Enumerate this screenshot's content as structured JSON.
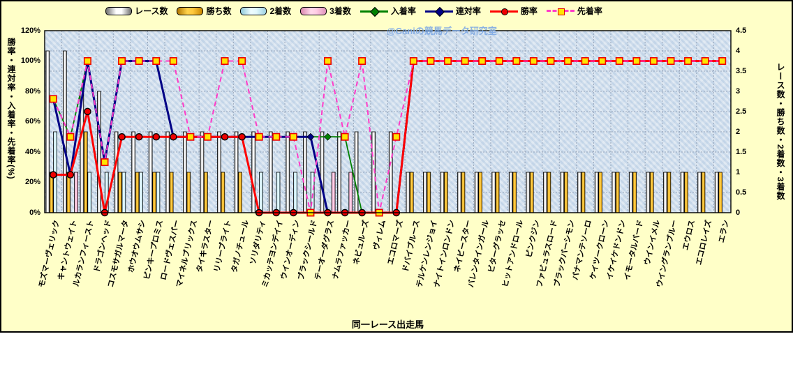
{
  "watermark": "@Caniの競馬データ研究室",
  "chart_data": {
    "type": "combo-bar-line",
    "xlabel": "同一レース出走馬",
    "grid": "on",
    "legend_position": "top",
    "y_left": {
      "title": "勝率・連対率・入着率・先着率(%)",
      "min": 0,
      "max": 120,
      "ticks": [
        "120%",
        "100%",
        "80%",
        "60%",
        "40%",
        "20%",
        "0%"
      ]
    },
    "y_right": {
      "title": "レース数・勝ち数・2着数・3着数",
      "min": 0,
      "max": 4.5,
      "ticks": [
        "4.5",
        "4",
        "3.5",
        "3",
        "2.5",
        "2",
        "1.5",
        "1",
        "0.5",
        "0"
      ]
    },
    "categories": [
      "モズマーヴェリック",
      "キャントウェイト",
      "ルカランフィースト",
      "ドラゴンヘッド",
      "コスモサガルマータ",
      "ホウオウムサシ",
      "ピンキープロミス",
      "ロードヴェスパー",
      "マイネルブリックス",
      "タイキラスター",
      "リリーブライト",
      "タガノチュール",
      "ソリダリティ",
      "ミカッテヨンデイイ",
      "ウインオーディン",
      "ブラックシールド",
      "テーオーダグラス",
      "ナムラファッカー",
      "ネビュルーズ",
      "ヴィレム",
      "エコロマーズ",
      "ドバイブルース",
      "テルケンレンジョイ",
      "ナイトインロンドン",
      "ネイビースター",
      "バレンタインガール",
      "ビターグラッセ",
      "ヒットアンドロール",
      "ピンクジン",
      "ファビュラスロード",
      "ブラックパーシモン",
      "パナマンテソーロ",
      "ケイツークローン",
      "イケイケドンドン",
      "イモータルバード",
      "ウインイメル",
      "ウイングランブルー",
      "エウロス",
      "エコロレイズ",
      "エラン"
    ],
    "series": [
      {
        "name": "レース数",
        "type": "bar",
        "axis": "right",
        "color": "#ffffff",
        "values": [
          4,
          4,
          3,
          3,
          2,
          2,
          2,
          2,
          2,
          2,
          2,
          2,
          2,
          2,
          2,
          2,
          2,
          2,
          2,
          2,
          2,
          1,
          1,
          1,
          1,
          1,
          1,
          1,
          1,
          1,
          1,
          1,
          1,
          1,
          1,
          1,
          1,
          1,
          1,
          1
        ]
      },
      {
        "name": "勝ち数",
        "type": "bar",
        "axis": "right",
        "color": "#ffb400",
        "values": [
          1,
          1,
          2,
          0,
          1,
          1,
          1,
          1,
          1,
          1,
          1,
          1,
          0,
          0,
          0,
          0,
          0,
          0,
          0,
          0,
          0,
          1,
          1,
          1,
          1,
          1,
          1,
          1,
          1,
          1,
          1,
          1,
          1,
          1,
          1,
          1,
          1,
          1,
          1,
          1
        ]
      },
      {
        "name": "2着数",
        "type": "bar",
        "axis": "right",
        "color": "#d2f2fa",
        "values": [
          2,
          0,
          1,
          1,
          1,
          1,
          1,
          0,
          0,
          0,
          0,
          0,
          1,
          1,
          1,
          1,
          0,
          0,
          0,
          0,
          0,
          0,
          0,
          0,
          0,
          0,
          0,
          0,
          0,
          0,
          0,
          0,
          0,
          0,
          0,
          0,
          0,
          0,
          0,
          0
        ]
      },
      {
        "name": "3着数",
        "type": "bar",
        "axis": "right",
        "color": "#f5aed2",
        "values": [
          0,
          1,
          0,
          0,
          0,
          0,
          0,
          0,
          0,
          0,
          0,
          0,
          0,
          0,
          0,
          0,
          1,
          1,
          0,
          0,
          0,
          0,
          0,
          0,
          0,
          0,
          0,
          0,
          0,
          0,
          0,
          0,
          0,
          0,
          0,
          0,
          0,
          0,
          0,
          0
        ]
      },
      {
        "name": "入着率",
        "type": "line",
        "axis": "left",
        "color": "#008000",
        "marker": "diamond",
        "dashed": false,
        "values": [
          75,
          50,
          100,
          33.3,
          100,
          100,
          100,
          50,
          50,
          50,
          50,
          50,
          50,
          50,
          50,
          50,
          50,
          50,
          0,
          0,
          0,
          100,
          100,
          100,
          100,
          100,
          100,
          100,
          100,
          100,
          100,
          100,
          100,
          100,
          100,
          100,
          100,
          100,
          100,
          100
        ]
      },
      {
        "name": "連対率",
        "type": "line",
        "axis": "left",
        "color": "#000085",
        "marker": "diamond",
        "dashed": false,
        "values": [
          75,
          25,
          100,
          33.3,
          100,
          100,
          100,
          50,
          50,
          50,
          50,
          50,
          50,
          50,
          50,
          50,
          0,
          0,
          0,
          0,
          0,
          100,
          100,
          100,
          100,
          100,
          100,
          100,
          100,
          100,
          100,
          100,
          100,
          100,
          100,
          100,
          100,
          100,
          100,
          100
        ]
      },
      {
        "name": "勝率",
        "type": "line",
        "axis": "left",
        "color": "#ff0000",
        "marker": "circle",
        "dashed": false,
        "values": [
          25,
          25,
          66.7,
          0,
          50,
          50,
          50,
          50,
          50,
          50,
          50,
          50,
          0,
          0,
          0,
          0,
          0,
          0,
          0,
          0,
          0,
          100,
          100,
          100,
          100,
          100,
          100,
          100,
          100,
          100,
          100,
          100,
          100,
          100,
          100,
          100,
          100,
          100,
          100,
          100
        ]
      },
      {
        "name": "先着率",
        "type": "line",
        "axis": "left",
        "color": "#ff3cc8",
        "marker": "square",
        "dashed": true,
        "values": [
          75,
          50,
          100,
          33.3,
          100,
          100,
          100,
          100,
          50,
          50,
          100,
          100,
          50,
          50,
          50,
          0,
          100,
          50,
          100,
          0,
          50,
          100,
          100,
          100,
          100,
          100,
          100,
          100,
          100,
          100,
          100,
          100,
          100,
          100,
          100,
          100,
          100,
          100,
          100,
          100
        ]
      }
    ]
  }
}
